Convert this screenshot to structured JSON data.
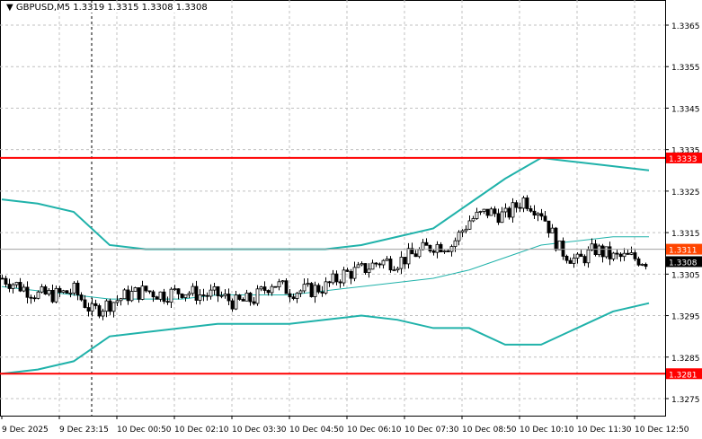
{
  "header": {
    "symbol": "GBPUSD,M5",
    "ohlc": "1.3319 1.3315 1.3308 1.3308"
  },
  "chart_data": {
    "type": "candlestick",
    "title": "GBPUSD,M5",
    "ylim": [
      1.32705,
      1.33705
    ],
    "y_ticks": [
      "1.3365",
      "1.3355",
      "1.3345",
      "1.3335",
      "1.3325",
      "1.3315",
      "1.3305",
      "1.3295",
      "1.3285",
      "1.3275"
    ],
    "x_ticks": [
      "9 Dec 2025",
      "9 Dec 23:15",
      "10 Dec 00:50",
      "10 Dec 02:10",
      "10 Dec 03:30",
      "10 Dec 04:50",
      "10 Dec 06:10",
      "10 Dec 07:30",
      "10 Dec 08:50",
      "10 Dec 10:10",
      "10 Dec 11:30",
      "10 Dec 12:50"
    ],
    "bars_per_tick": 16,
    "bar_count": 180,
    "close_keyframes_every_5_bars": [
      1.3304,
      1.3302,
      1.33,
      1.33,
      1.3301,
      1.3296,
      1.3298,
      1.33,
      1.3301,
      1.33,
      1.3301,
      1.33,
      1.33,
      1.3298,
      1.3299,
      1.3303,
      1.3301,
      1.3301,
      1.3302,
      1.3305,
      1.3306,
      1.3308,
      1.3308,
      1.331,
      1.3312,
      1.3312,
      1.3318,
      1.332,
      1.3319,
      1.3323,
      1.332,
      1.3311,
      1.3308,
      1.3311,
      1.3309,
      1.3309,
      1.3308
    ],
    "bollinger_every_10_bars": {
      "upper": [
        1.3323,
        1.3322,
        1.332,
        1.3312,
        1.3311,
        1.3311,
        1.3311,
        1.3311,
        1.3311,
        1.3311,
        1.3312,
        1.3314,
        1.3316,
        1.3322,
        1.3328,
        1.3333,
        1.3332,
        1.3331,
        1.333
      ],
      "middle": [
        1.3302,
        1.3301,
        1.33,
        1.3299,
        1.3299,
        1.3299,
        1.33,
        1.33,
        1.33,
        1.3301,
        1.3302,
        1.3303,
        1.3304,
        1.3306,
        1.3309,
        1.3312,
        1.3313,
        1.3314,
        1.3314
      ],
      "lower": [
        1.3281,
        1.3282,
        1.3284,
        1.329,
        1.3291,
        1.3292,
        1.3293,
        1.3293,
        1.3293,
        1.3294,
        1.3295,
        1.3294,
        1.3292,
        1.3292,
        1.3288,
        1.3288,
        1.3292,
        1.3296,
        1.3298
      ]
    },
    "levels": [
      {
        "price": "1.3333",
        "color": "#ff0000"
      },
      {
        "price": "1.3281",
        "color": "#ff0000"
      }
    ],
    "bid_line": {
      "price": "1.3311",
      "color": "#ff4500"
    },
    "last_price": {
      "price": "1.3308",
      "color": "#000000"
    },
    "band_color": "#20b2aa",
    "vertical_marker_tick": "9 Dec 23:15",
    "grid": true
  }
}
